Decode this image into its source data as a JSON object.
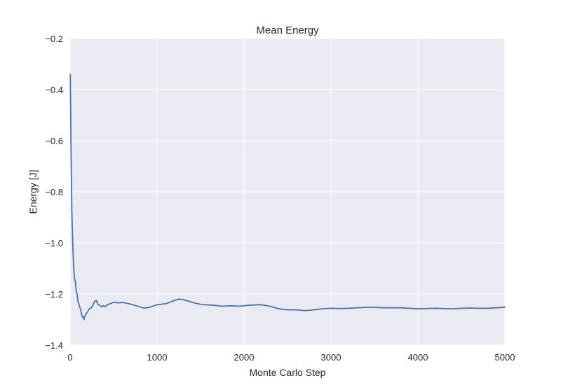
{
  "chart_data": {
    "type": "line",
    "title": "Mean Energy",
    "xlabel": "Monte Carlo Step",
    "ylabel": "Energy [J]",
    "xlim": [
      0,
      5000
    ],
    "ylim": [
      -1.4,
      -0.2
    ],
    "xticks": [
      0,
      1000,
      2000,
      3000,
      4000,
      5000
    ],
    "yticks": [
      -1.4,
      -1.2,
      -1.0,
      -0.8,
      -0.6,
      -0.4,
      -0.2
    ],
    "xtick_labels": [
      "0",
      "1000",
      "2000",
      "3000",
      "4000",
      "5000"
    ],
    "ytick_labels": [
      "−1.4",
      "−1.2",
      "−1.0",
      "−0.8",
      "−0.6",
      "−0.4",
      "−0.2"
    ],
    "grid": true,
    "background": "#EAEAF2",
    "grid_color": "#FFFFFF",
    "line_color": "#4C72B0",
    "series": [
      {
        "x": [
          2,
          10,
          20,
          30,
          40,
          50,
          60,
          70,
          80,
          90,
          100,
          110,
          120,
          130,
          140,
          150,
          160,
          170,
          180,
          190,
          200,
          220,
          240,
          260,
          280,
          300,
          320,
          340,
          360,
          380,
          400,
          420,
          440,
          460,
          480,
          500,
          550,
          600,
          650,
          700,
          750,
          800,
          850,
          900,
          950,
          1000,
          1050,
          1100,
          1150,
          1200,
          1250,
          1300,
          1350,
          1400,
          1450,
          1500,
          1550,
          1600,
          1650,
          1700,
          1750,
          1800,
          1850,
          1900,
          1950,
          2000,
          2100,
          2200,
          2300,
          2400,
          2500,
          2600,
          2700,
          2800,
          2900,
          3000,
          3100,
          3200,
          3300,
          3400,
          3500,
          3600,
          3700,
          3800,
          3900,
          4000,
          4100,
          4200,
          4300,
          4400,
          4500,
          4600,
          4700,
          4800,
          4900,
          5000
        ],
        "y": [
          -0.34,
          -0.62,
          -0.88,
          -1.0,
          -1.09,
          -1.14,
          -1.15,
          -1.19,
          -1.2,
          -1.23,
          -1.24,
          -1.25,
          -1.26,
          -1.275,
          -1.29,
          -1.29,
          -1.3,
          -1.285,
          -1.28,
          -1.275,
          -1.27,
          -1.258,
          -1.255,
          -1.245,
          -1.23,
          -1.225,
          -1.24,
          -1.245,
          -1.25,
          -1.245,
          -1.25,
          -1.245,
          -1.24,
          -1.238,
          -1.235,
          -1.232,
          -1.235,
          -1.233,
          -1.236,
          -1.24,
          -1.245,
          -1.25,
          -1.255,
          -1.253,
          -1.248,
          -1.242,
          -1.24,
          -1.238,
          -1.232,
          -1.225,
          -1.22,
          -1.222,
          -1.227,
          -1.232,
          -1.237,
          -1.24,
          -1.242,
          -1.243,
          -1.244,
          -1.246,
          -1.248,
          -1.247,
          -1.246,
          -1.247,
          -1.248,
          -1.246,
          -1.243,
          -1.242,
          -1.248,
          -1.258,
          -1.262,
          -1.262,
          -1.265,
          -1.262,
          -1.258,
          -1.256,
          -1.257,
          -1.256,
          -1.254,
          -1.252,
          -1.252,
          -1.254,
          -1.254,
          -1.254,
          -1.256,
          -1.258,
          -1.257,
          -1.256,
          -1.257,
          -1.258,
          -1.256,
          -1.255,
          -1.256,
          -1.256,
          -1.254,
          -1.252
        ]
      }
    ]
  }
}
